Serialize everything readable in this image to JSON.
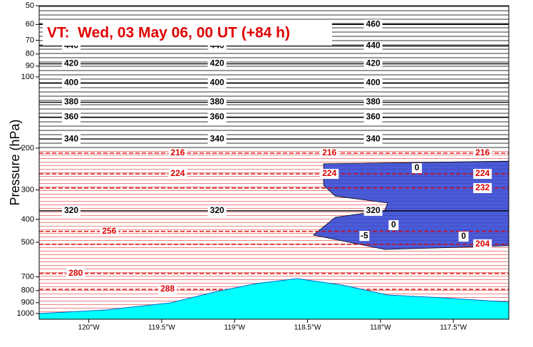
{
  "chart_data": {
    "type": "cross-section",
    "title": "VT:  Wed, 03 May 06, 00 UT (+84 h)",
    "y_label": "Pressure (hPa)",
    "ylim": [
      1057,
      50
    ],
    "log_y": true,
    "yticks": [
      50,
      60,
      70,
      80,
      90,
      100,
      200,
      300,
      400,
      500,
      700,
      800,
      900,
      1000
    ],
    "xlim": [
      -120.34,
      -117.12
    ],
    "xticks": [
      {
        "value": -120,
        "label": "120°W"
      },
      {
        "value": -119.5,
        "label": "119.5°W"
      },
      {
        "value": -119,
        "label": "119°W"
      },
      {
        "value": -118.5,
        "label": "118.5°W"
      },
      {
        "value": -118,
        "label": "118°W"
      },
      {
        "value": -117.5,
        "label": "117.5°W"
      }
    ],
    "theta_contours": {
      "color": "#000000",
      "levels": [
        {
          "value": 460,
          "pressure": 60,
          "label_x": [
            -118.05
          ]
        },
        {
          "value": 440,
          "pressure": 74,
          "label_x": [
            -120.12,
            -119.12,
            -118.05
          ]
        },
        {
          "value": 420,
          "pressure": 88,
          "label_x": [
            -120.12,
            -119.12,
            -118.05
          ]
        },
        {
          "value": 400,
          "pressure": 106,
          "label_x": [
            -120.12,
            -119.12,
            -118.05
          ]
        },
        {
          "value": 380,
          "pressure": 128,
          "label_x": [
            -120.12,
            -119.12,
            -118.05
          ]
        },
        {
          "value": 360,
          "pressure": 148,
          "label_x": [
            -120.12,
            -119.12,
            -118.05
          ]
        },
        {
          "value": 340,
          "pressure": 183,
          "label_x": [
            -120.12,
            -119.12,
            -118.05
          ]
        },
        {
          "value": 320,
          "pressure": 368,
          "label_x": [
            -120.12,
            -119.12,
            -118.05
          ]
        }
      ]
    },
    "temp_contours": {
      "color": "#dd0000",
      "levels": [
        {
          "value": 216,
          "pressure": 210,
          "label_x": [
            -119.39,
            -118.35,
            -117.3
          ]
        },
        {
          "value": 224,
          "pressure": 257,
          "label_x": [
            -119.39,
            -118.35,
            -117.3
          ]
        },
        {
          "value": 232,
          "pressure": 295,
          "label_x": [
            -117.3
          ]
        },
        {
          "value": 256,
          "pressure": 450,
          "label_x": [
            -119.86
          ]
        },
        {
          "value": 204,
          "pressure": 510,
          "label_x": [
            -117.3
          ]
        },
        {
          "value": 280,
          "pressure": 678,
          "label_x": [
            -120.09
          ]
        },
        {
          "value": 288,
          "pressure": 790,
          "label_x": [
            -119.46
          ]
        }
      ]
    },
    "shading_labels": [
      {
        "value": 0,
        "x": -117.75,
        "pressure": 243
      },
      {
        "value": 0,
        "x": -117.91,
        "pressure": 423
      },
      {
        "value": 0,
        "x": -117.43,
        "pressure": 473
      },
      {
        "value": -5,
        "x": -118.11,
        "pressure": 470
      }
    ],
    "cloud": {
      "color": "#2a3fd0",
      "x": [
        -118.39,
        -117.12,
        -117.12,
        -117.97,
        -118.46,
        -118.31,
        -117.97,
        -117.95,
        -118.31,
        -118.39
      ],
      "pressure": [
        233,
        227,
        517,
        536,
        466,
        392,
        366,
        341,
        319,
        287
      ]
    },
    "terrain": {
      "color": "#00ffff",
      "x": [
        -120.34,
        -119.88,
        -119.44,
        -119.14,
        -118.85,
        -118.57,
        -118.26,
        -117.95,
        -117.58,
        -117.12
      ],
      "pressure": [
        1000,
        966,
        901,
        812,
        747,
        712,
        758,
        835,
        858,
        895
      ]
    }
  }
}
